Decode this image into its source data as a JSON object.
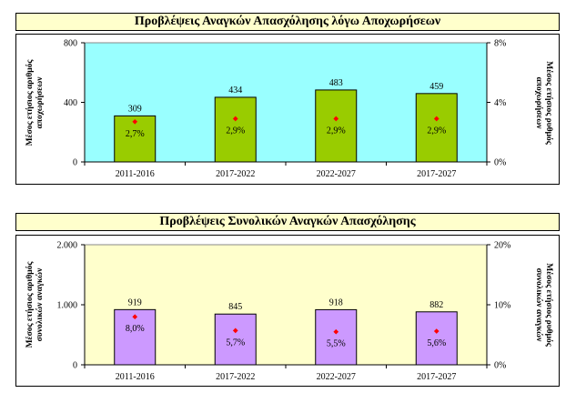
{
  "charts": [
    {
      "title": "Προβλέψεις Αναγκών Απασχόλησης λόγω Αποχωρήσεων",
      "ylabel_left": "Μέσος ετήσιος αριθμός\nαποχωρήσεων",
      "ylabel_right": "Μέσος ετήσιος ρυθμός\nαποχωρήσεων",
      "colors": {
        "plot_bg": "#99ffff",
        "bar": "#99cc00",
        "marker": "#ff0000"
      }
    },
    {
      "title": "Προβλέψεις Συνολικών Αναγκών Απασχόλησης",
      "ylabel_left": "Μέσος ετήσιος αριθμός\nσυνολικών αναγκών",
      "ylabel_right": "Μέσος ετήσιος ρυθμός\nσυνολικών αναγκών",
      "colors": {
        "plot_bg": "#ffffcc",
        "bar": "#cc99ff",
        "marker": "#ff0000"
      }
    }
  ],
  "chart_data": [
    {
      "type": "bar",
      "title": "Προβλέψεις Αναγκών Απασχόλησης λόγω Αποχωρήσεων",
      "categories": [
        "2011-2016",
        "2017-2022",
        "2022-2027",
        "2017-2027"
      ],
      "series": [
        {
          "values": [
            309,
            434,
            483,
            459
          ],
          "value_labels": [
            "309",
            "434",
            "483",
            "459"
          ],
          "axis": "left"
        },
        {
          "values": [
            2.7,
            2.9,
            2.9,
            2.9
          ],
          "value_labels": [
            "2,7%",
            "2,9%",
            "2,9%",
            "2,9%"
          ],
          "axis": "right",
          "style": "marker"
        }
      ],
      "ylim": [
        0,
        800
      ],
      "yticks": [
        "0",
        "400",
        "800"
      ],
      "ylim_right": [
        0,
        8
      ],
      "yticks_right": [
        "0%",
        "4%",
        "8%"
      ],
      "xlabel": "",
      "ylabel": "Μέσος ετήσιος αριθμός αποχωρήσεων",
      "ylabel_right": "Μέσος ετήσιος ρυθμός αποχωρήσεων",
      "grid": false,
      "legend": "none"
    },
    {
      "type": "bar",
      "title": "Προβλέψεις Συνολικών Αναγκών Απασχόλησης",
      "categories": [
        "2011-2016",
        "2017-2022",
        "2022-2027",
        "2017-2027"
      ],
      "series": [
        {
          "values": [
            919,
            845,
            918,
            882
          ],
          "value_labels": [
            "919",
            "845",
            "918",
            "882"
          ],
          "axis": "left"
        },
        {
          "values": [
            8.0,
            5.7,
            5.5,
            5.6
          ],
          "value_labels": [
            "8,0%",
            "5,7%",
            "5,5%",
            "5,6%"
          ],
          "axis": "right",
          "style": "marker"
        }
      ],
      "ylim": [
        0,
        2000
      ],
      "yticks": [
        "0",
        "1.000",
        "2.000"
      ],
      "ylim_right": [
        0,
        20
      ],
      "yticks_right": [
        "0%",
        "10%",
        "20%"
      ],
      "xlabel": "",
      "ylabel": "Μέσος ετήσιος αριθμός συνολικών αναγκών",
      "ylabel_right": "Μέσος ετήσιος ρυθμός συνολικών αναγκών",
      "grid": false,
      "legend": "none"
    }
  ]
}
